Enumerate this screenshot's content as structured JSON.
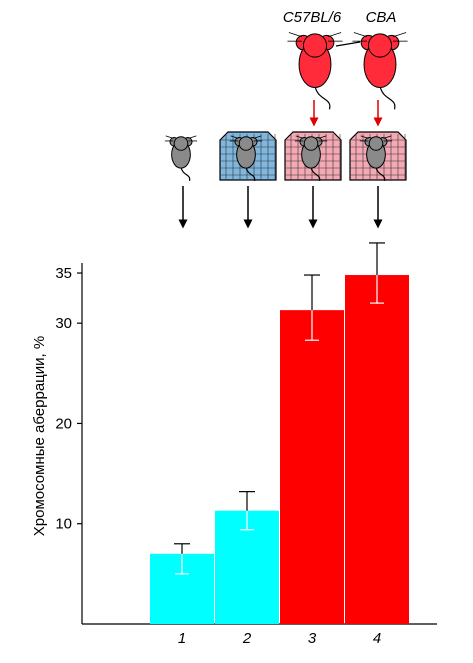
{
  "strain_labels": [
    "C57BL/6",
    "CBA"
  ],
  "chart_data": {
    "type": "bar",
    "ylabel": "Хромосомные аберрации, %",
    "categories": [
      "1",
      "2",
      "3",
      "4"
    ],
    "values": [
      7,
      11.3,
      31.3,
      34.8
    ],
    "error_low": [
      5,
      9.4,
      28.3,
      32
    ],
    "error_high": [
      8,
      13.2,
      34.8,
      38
    ],
    "yticks": [
      10,
      20,
      30,
      35
    ],
    "ylim": [
      0,
      36
    ],
    "bar_colors": [
      "#00ffff",
      "#00ffff",
      "#ff0000",
      "#ff0000"
    ],
    "grid": false
  },
  "illustration": {
    "cage_colors": [
      "none",
      "#7fb7df",
      "#f4a9b4",
      "#f4a9b4"
    ],
    "mouse_gray": "#8a8a8a",
    "mouse_red": "#ff2a3a"
  }
}
